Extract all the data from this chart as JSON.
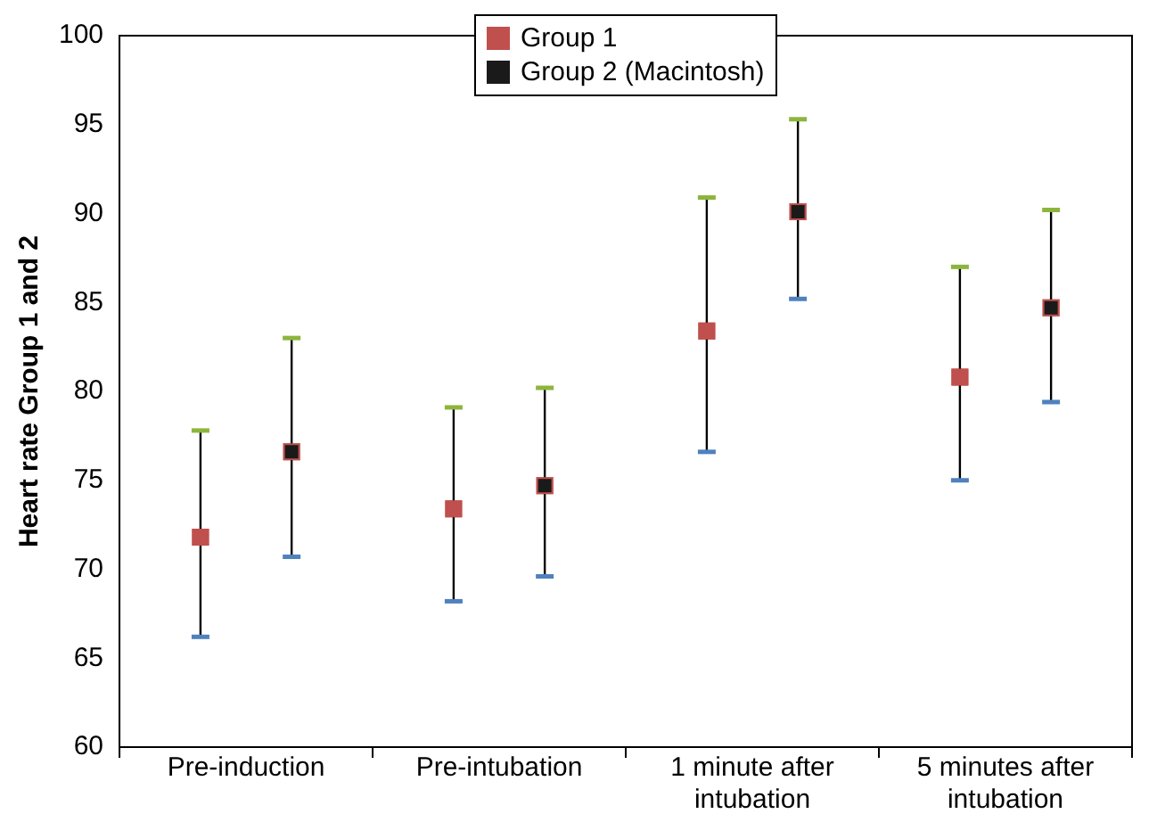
{
  "chart_data": {
    "type": "scatter",
    "ylabel": "Heart rate Group 1 and 2",
    "categories": [
      "Pre-induction",
      "Pre-intubation",
      "1 minute after intubation",
      "5 minutes after intubation"
    ],
    "series": [
      {
        "name": "Group 1",
        "color": "#c0504d",
        "values": [
          71.8,
          73.4,
          83.4,
          80.8
        ],
        "errors": [
          [
            66.2,
            77.8
          ],
          [
            68.2,
            79.1
          ],
          [
            76.6,
            90.9
          ],
          [
            75.0,
            87.0
          ]
        ]
      },
      {
        "name": "Group 2 (Macintosh)",
        "color": "#1a1a1a",
        "values": [
          76.6,
          74.7,
          90.1,
          84.7
        ],
        "errors": [
          [
            70.7,
            83.0
          ],
          [
            69.6,
            80.2
          ],
          [
            85.2,
            95.3
          ],
          [
            79.4,
            90.2
          ]
        ]
      }
    ],
    "ylim": [
      60,
      100
    ],
    "yticks": [
      60,
      65,
      70,
      75,
      80,
      85,
      90,
      95,
      100
    ],
    "grid": false,
    "legend": "top",
    "marker": "square"
  }
}
